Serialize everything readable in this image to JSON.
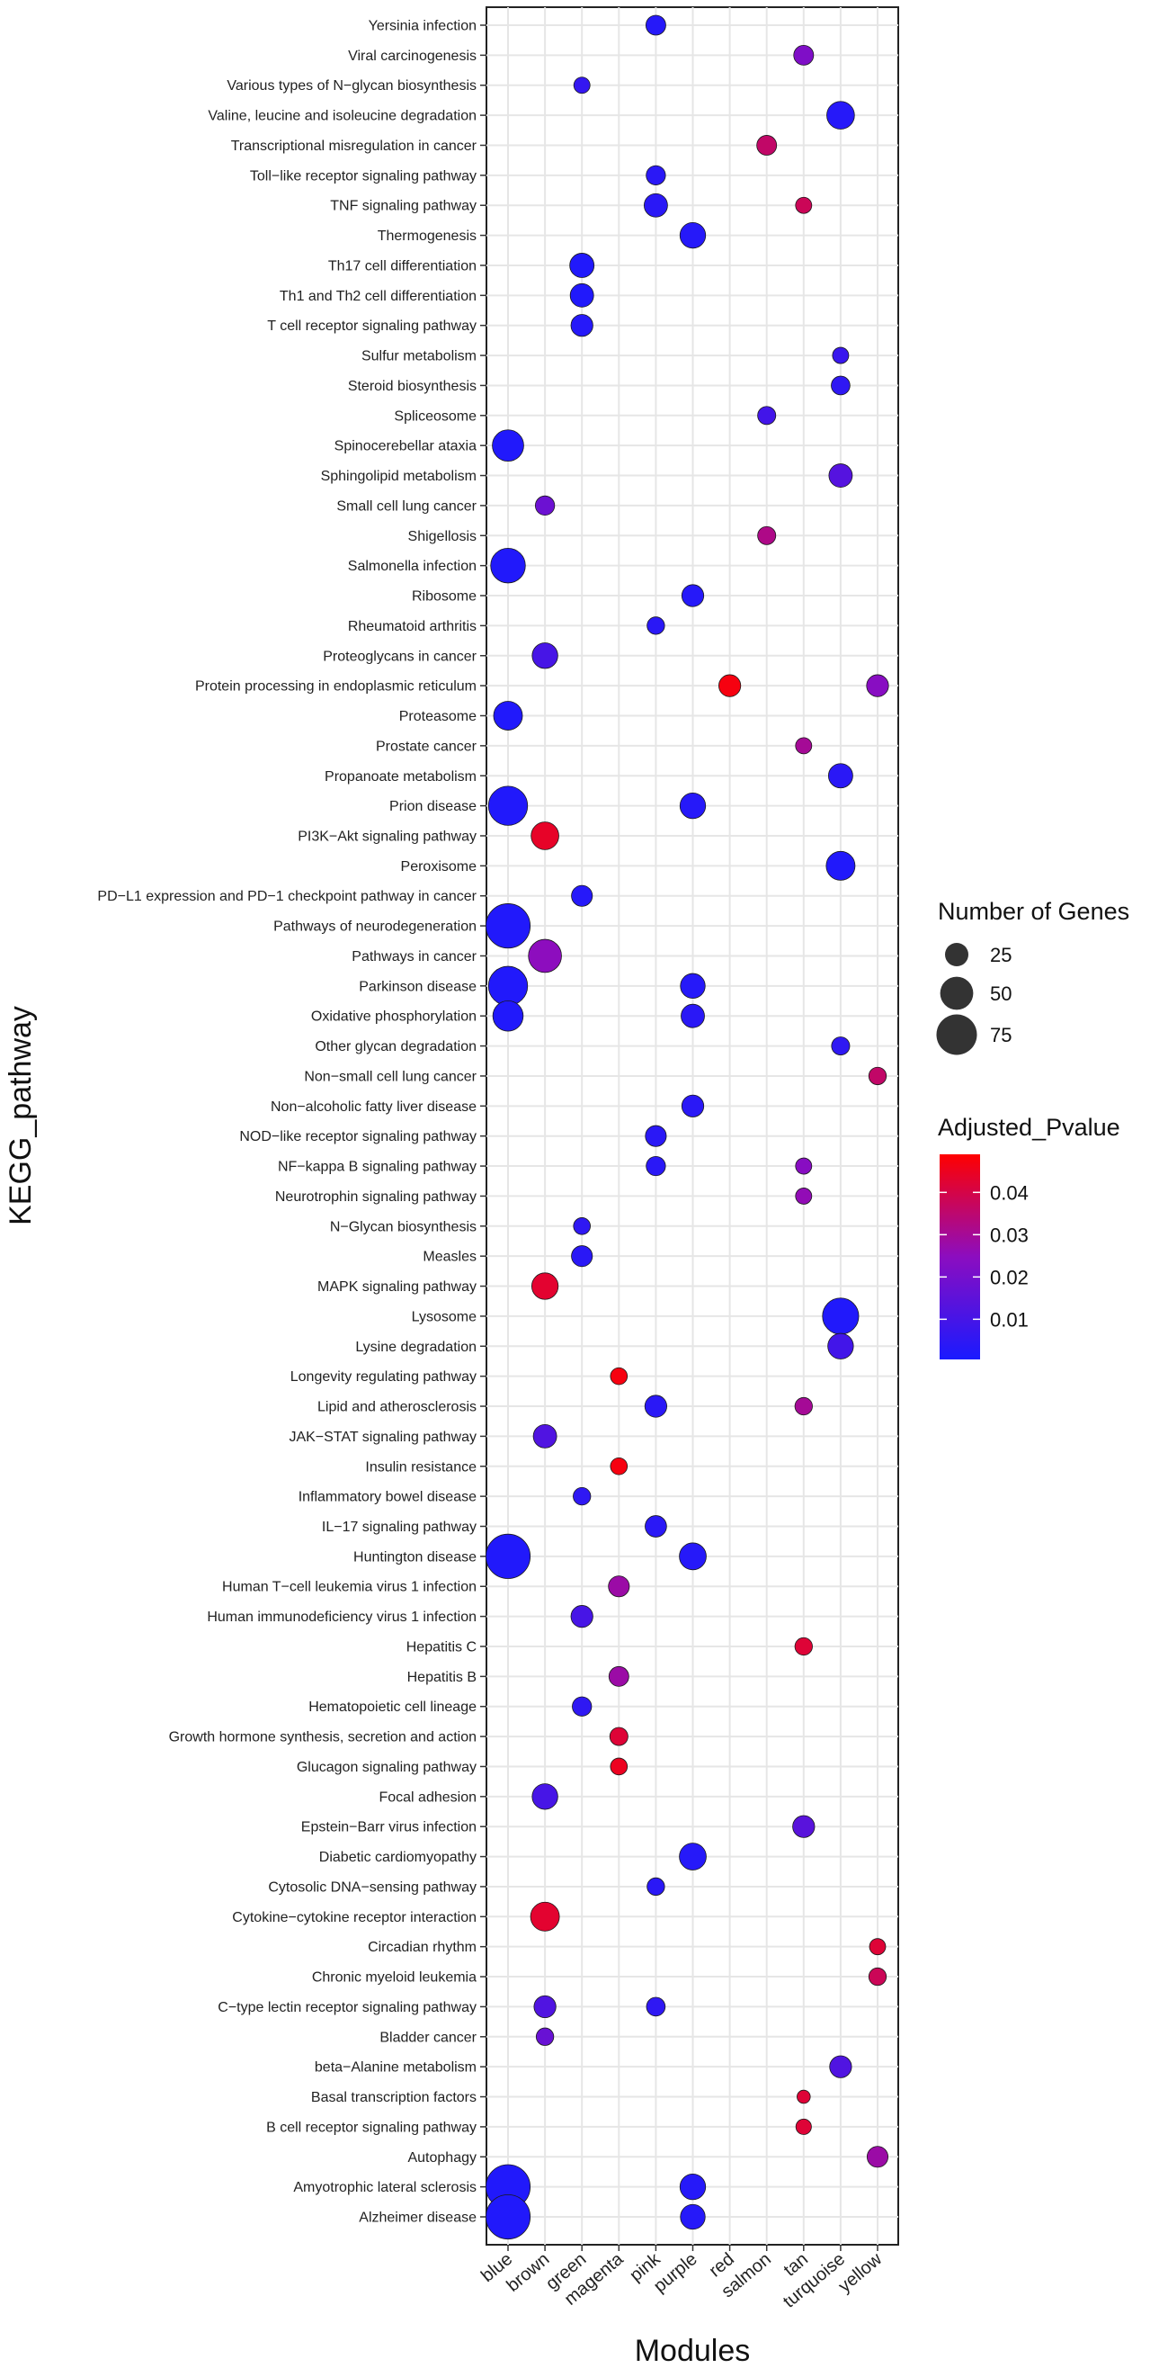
{
  "chart_data": {
    "type": "scatter",
    "xlabel": "Modules",
    "ylabel": "KEGG_pathway",
    "modules": [
      "blue",
      "brown",
      "green",
      "magenta",
      "pink",
      "purple",
      "red",
      "salmon",
      "tan",
      "turquoise",
      "yellow"
    ],
    "pathways": [
      "Yersinia infection",
      "Viral carcinogenesis",
      "Various types of N−glycan biosynthesis",
      "Valine, leucine and isoleucine degradation",
      "Transcriptional misregulation in cancer",
      "Toll−like receptor signaling pathway",
      "TNF signaling pathway",
      "Thermogenesis",
      "Th17 cell differentiation",
      "Th1 and Th2 cell differentiation",
      "T cell receptor signaling pathway",
      "Sulfur metabolism",
      "Steroid biosynthesis",
      "Spliceosome",
      "Spinocerebellar ataxia",
      "Sphingolipid metabolism",
      "Small cell lung cancer",
      "Shigellosis",
      "Salmonella infection",
      "Ribosome",
      "Rheumatoid arthritis",
      "Proteoglycans in cancer",
      "Protein processing in endoplasmic reticulum",
      "Proteasome",
      "Prostate cancer",
      "Propanoate metabolism",
      "Prion disease",
      "PI3K−Akt signaling pathway",
      "Peroxisome",
      "PD−L1 expression and PD−1 checkpoint pathway in cancer",
      "Pathways of neurodegeneration",
      "Pathways in cancer",
      "Parkinson disease",
      "Oxidative phosphorylation",
      "Other glycan degradation",
      "Non−small cell lung cancer",
      "Non−alcoholic fatty liver disease",
      "NOD−like receptor signaling pathway",
      "NF−kappa B signaling pathway",
      "Neurotrophin signaling pathway",
      "N−Glycan biosynthesis",
      "Measles",
      "MAPK signaling pathway",
      "Lysosome",
      "Lysine degradation",
      "Longevity regulating pathway",
      "Lipid and atherosclerosis",
      "JAK−STAT signaling pathway",
      "Insulin resistance",
      "Inflammatory bowel disease",
      "IL−17 signaling pathway",
      "Huntington disease",
      "Human T−cell leukemia virus 1 infection",
      "Human immunodeficiency virus 1 infection",
      "Hepatitis C",
      "Hepatitis B",
      "Hematopoietic cell lineage",
      "Growth hormone synthesis, secretion and action",
      "Glucagon signaling pathway",
      "Focal adhesion",
      "Epstein−Barr virus infection",
      "Diabetic cardiomyopathy",
      "Cytosolic DNA−sensing pathway",
      "Cytokine−cytokine receptor interaction",
      "Circadian rhythm",
      "Chronic myeloid leukemia",
      "C−type lectin receptor signaling pathway",
      "Bladder cancer",
      "beta−Alanine metabolism",
      "Basal transcription factors",
      "B cell receptor signaling pathway",
      "Autophagy",
      "Amyotrophic lateral sclerosis",
      "Alzheimer disease"
    ],
    "points": [
      {
        "pathway": "Yersinia infection",
        "module": "pink",
        "genes": 18,
        "padj": 0.003
      },
      {
        "pathway": "Viral carcinogenesis",
        "module": "tan",
        "genes": 18,
        "padj": 0.022
      },
      {
        "pathway": "Various types of N−glycan biosynthesis",
        "module": "green",
        "genes": 12,
        "padj": 0.006
      },
      {
        "pathway": "Valine, leucine and isoleucine degradation",
        "module": "turquoise",
        "genes": 35,
        "padj": 0.003
      },
      {
        "pathway": "Transcriptional misregulation in cancer",
        "module": "salmon",
        "genes": 18,
        "padj": 0.036
      },
      {
        "pathway": "Toll−like receptor signaling pathway",
        "module": "pink",
        "genes": 17,
        "padj": 0.004
      },
      {
        "pathway": "TNF signaling pathway",
        "module": "pink",
        "genes": 25,
        "padj": 0.004
      },
      {
        "pathway": "TNF signaling pathway",
        "module": "tan",
        "genes": 12,
        "padj": 0.038
      },
      {
        "pathway": "Thermogenesis",
        "module": "purple",
        "genes": 30,
        "padj": 0.003
      },
      {
        "pathway": "Th17 cell differentiation",
        "module": "green",
        "genes": 27,
        "padj": 0.002
      },
      {
        "pathway": "Th1 and Th2 cell differentiation",
        "module": "green",
        "genes": 25,
        "padj": 0.002
      },
      {
        "pathway": "T cell receptor signaling pathway",
        "module": "green",
        "genes": 22,
        "padj": 0.003
      },
      {
        "pathway": "Sulfur metabolism",
        "module": "turquoise",
        "genes": 12,
        "padj": 0.007
      },
      {
        "pathway": "Steroid biosynthesis",
        "module": "turquoise",
        "genes": 16,
        "padj": 0.005
      },
      {
        "pathway": "Spliceosome",
        "module": "salmon",
        "genes": 15,
        "padj": 0.009
      },
      {
        "pathway": "Spinocerebellar ataxia",
        "module": "blue",
        "genes": 45,
        "padj": 0.002
      },
      {
        "pathway": "Sphingolipid metabolism",
        "module": "turquoise",
        "genes": 25,
        "padj": 0.013
      },
      {
        "pathway": "Small cell lung cancer",
        "module": "brown",
        "genes": 17,
        "padj": 0.018
      },
      {
        "pathway": "Shigellosis",
        "module": "salmon",
        "genes": 15,
        "padj": 0.032
      },
      {
        "pathway": "Salmonella infection",
        "module": "blue",
        "genes": 55,
        "padj": 0.002
      },
      {
        "pathway": "Ribosome",
        "module": "purple",
        "genes": 22,
        "padj": 0.003
      },
      {
        "pathway": "Rheumatoid arthritis",
        "module": "pink",
        "genes": 14,
        "padj": 0.004
      },
      {
        "pathway": "Proteoglycans in cancer",
        "module": "brown",
        "genes": 30,
        "padj": 0.01
      },
      {
        "pathway": "Protein processing in endoplasmic reticulum",
        "module": "red",
        "genes": 22,
        "padj": 0.047
      },
      {
        "pathway": "Protein processing in endoplasmic reticulum",
        "module": "yellow",
        "genes": 22,
        "padj": 0.024
      },
      {
        "pathway": "Proteasome",
        "module": "blue",
        "genes": 38,
        "padj": 0.002
      },
      {
        "pathway": "Prostate cancer",
        "module": "tan",
        "genes": 12,
        "padj": 0.03
      },
      {
        "pathway": "Propanoate metabolism",
        "module": "turquoise",
        "genes": 27,
        "padj": 0.004
      },
      {
        "pathway": "Prion disease",
        "module": "blue",
        "genes": 70,
        "padj": 0.002
      },
      {
        "pathway": "Prion disease",
        "module": "purple",
        "genes": 30,
        "padj": 0.003
      },
      {
        "pathway": "PI3K−Akt signaling pathway",
        "module": "brown",
        "genes": 35,
        "padj": 0.044
      },
      {
        "pathway": "Peroxisome",
        "module": "turquoise",
        "genes": 38,
        "padj": 0.002
      },
      {
        "pathway": "PD−L1 expression and PD−1 checkpoint pathway in cancer",
        "module": "green",
        "genes": 20,
        "padj": 0.003
      },
      {
        "pathway": "Pathways of neurodegeneration",
        "module": "blue",
        "genes": 90,
        "padj": 0.002
      },
      {
        "pathway": "Pathways in cancer",
        "module": "brown",
        "genes": 50,
        "padj": 0.025
      },
      {
        "pathway": "Parkinson disease",
        "module": "blue",
        "genes": 70,
        "padj": 0.002
      },
      {
        "pathway": "Parkinson disease",
        "module": "purple",
        "genes": 28,
        "padj": 0.003
      },
      {
        "pathway": "Oxidative phosphorylation",
        "module": "blue",
        "genes": 42,
        "padj": 0.002
      },
      {
        "pathway": "Oxidative phosphorylation",
        "module": "purple",
        "genes": 25,
        "padj": 0.004
      },
      {
        "pathway": "Other glycan degradation",
        "module": "turquoise",
        "genes": 15,
        "padj": 0.005
      },
      {
        "pathway": "Non−small cell lung cancer",
        "module": "yellow",
        "genes": 14,
        "padj": 0.036
      },
      {
        "pathway": "Non−alcoholic fatty liver disease",
        "module": "purple",
        "genes": 22,
        "padj": 0.004
      },
      {
        "pathway": "NOD−like receptor signaling pathway",
        "module": "pink",
        "genes": 20,
        "padj": 0.004
      },
      {
        "pathway": "NF−kappa B signaling pathway",
        "module": "pink",
        "genes": 17,
        "padj": 0.004
      },
      {
        "pathway": "NF−kappa B signaling pathway",
        "module": "tan",
        "genes": 12,
        "padj": 0.024
      },
      {
        "pathway": "Neurotrophin signaling pathway",
        "module": "tan",
        "genes": 12,
        "padj": 0.026
      },
      {
        "pathway": "N−Glycan biosynthesis",
        "module": "green",
        "genes": 13,
        "padj": 0.005
      },
      {
        "pathway": "Measles",
        "module": "green",
        "genes": 20,
        "padj": 0.004
      },
      {
        "pathway": "MAPK signaling pathway",
        "module": "brown",
        "genes": 32,
        "padj": 0.043
      },
      {
        "pathway": "Lysosome",
        "module": "turquoise",
        "genes": 60,
        "padj": 0.002
      },
      {
        "pathway": "Lysine degradation",
        "module": "turquoise",
        "genes": 30,
        "padj": 0.009
      },
      {
        "pathway": "Longevity regulating pathway",
        "module": "magenta",
        "genes": 13,
        "padj": 0.047
      },
      {
        "pathway": "Lipid and atherosclerosis",
        "module": "pink",
        "genes": 22,
        "padj": 0.004
      },
      {
        "pathway": "Lipid and atherosclerosis",
        "module": "tan",
        "genes": 14,
        "padj": 0.03
      },
      {
        "pathway": "JAK−STAT signaling pathway",
        "module": "brown",
        "genes": 25,
        "padj": 0.012
      },
      {
        "pathway": "Insulin resistance",
        "module": "magenta",
        "genes": 13,
        "padj": 0.047
      },
      {
        "pathway": "Inflammatory bowel disease",
        "module": "green",
        "genes": 14,
        "padj": 0.005
      },
      {
        "pathway": "IL−17 signaling pathway",
        "module": "pink",
        "genes": 21,
        "padj": 0.004
      },
      {
        "pathway": "Huntington disease",
        "module": "blue",
        "genes": 90,
        "padj": 0.002
      },
      {
        "pathway": "Huntington disease",
        "module": "purple",
        "genes": 33,
        "padj": 0.003
      },
      {
        "pathway": "Human T−cell leukemia virus 1 infection",
        "module": "magenta",
        "genes": 20,
        "padj": 0.028
      },
      {
        "pathway": "Human immunodeficiency virus 1 infection",
        "module": "green",
        "genes": 22,
        "padj": 0.01
      },
      {
        "pathway": "Hepatitis C",
        "module": "tan",
        "genes": 14,
        "padj": 0.042
      },
      {
        "pathway": "Hepatitis B",
        "module": "magenta",
        "genes": 18,
        "padj": 0.028
      },
      {
        "pathway": "Hematopoietic cell lineage",
        "module": "green",
        "genes": 17,
        "padj": 0.005
      },
      {
        "pathway": "Growth hormone synthesis, secretion and action",
        "module": "magenta",
        "genes": 15,
        "padj": 0.042
      },
      {
        "pathway": "Glucagon signaling pathway",
        "module": "magenta",
        "genes": 13,
        "padj": 0.045
      },
      {
        "pathway": "Focal adhesion",
        "module": "brown",
        "genes": 30,
        "padj": 0.01
      },
      {
        "pathway": "Epstein−Barr virus infection",
        "module": "tan",
        "genes": 22,
        "padj": 0.014
      },
      {
        "pathway": "Diabetic cardiomyopathy",
        "module": "purple",
        "genes": 33,
        "padj": 0.003
      },
      {
        "pathway": "Cytosolic DNA−sensing pathway",
        "module": "pink",
        "genes": 14,
        "padj": 0.004
      },
      {
        "pathway": "Cytokine−cytokine receptor interaction",
        "module": "brown",
        "genes": 38,
        "padj": 0.043
      },
      {
        "pathway": "Circadian rhythm",
        "module": "yellow",
        "genes": 12,
        "padj": 0.042
      },
      {
        "pathway": "Chronic myeloid leukemia",
        "module": "yellow",
        "genes": 14,
        "padj": 0.038
      },
      {
        "pathway": "C−type lectin receptor signaling pathway",
        "module": "brown",
        "genes": 22,
        "padj": 0.012
      },
      {
        "pathway": "C−type lectin receptor signaling pathway",
        "module": "pink",
        "genes": 16,
        "padj": 0.005
      },
      {
        "pathway": "Bladder cancer",
        "module": "brown",
        "genes": 14,
        "padj": 0.017
      },
      {
        "pathway": "beta−Alanine metabolism",
        "module": "turquoise",
        "genes": 22,
        "padj": 0.012
      },
      {
        "pathway": "Basal transcription factors",
        "module": "tan",
        "genes": 8,
        "padj": 0.042
      },
      {
        "pathway": "B cell receptor signaling pathway",
        "module": "tan",
        "genes": 11,
        "padj": 0.042
      },
      {
        "pathway": "Autophagy",
        "module": "yellow",
        "genes": 20,
        "padj": 0.028
      },
      {
        "pathway": "Amyotrophic lateral sclerosis",
        "module": "blue",
        "genes": 90,
        "padj": 0.002
      },
      {
        "pathway": "Amyotrophic lateral sclerosis",
        "module": "purple",
        "genes": 30,
        "padj": 0.003
      },
      {
        "pathway": "Alzheimer disease",
        "module": "blue",
        "genes": 90,
        "padj": 0.002
      },
      {
        "pathway": "Alzheimer disease",
        "module": "purple",
        "genes": 28,
        "padj": 0.003
      }
    ],
    "size_legend": {
      "title": "Number of Genes",
      "entries": [
        {
          "label": "25",
          "value": 25
        },
        {
          "label": "50",
          "value": 50
        },
        {
          "label": "75",
          "value": 75
        }
      ]
    },
    "color_legend": {
      "title": "Adjusted_Pvalue",
      "ticks": [
        {
          "label": "0.04",
          "value": 0.04
        },
        {
          "label": "0.03",
          "value": 0.03
        },
        {
          "label": "0.02",
          "value": 0.02
        },
        {
          "label": "0.01",
          "value": 0.01
        }
      ],
      "range": [
        0.0005,
        0.049
      ],
      "low_color": "#1a1aff",
      "high_color": "#ff0000"
    },
    "grid": true
  }
}
